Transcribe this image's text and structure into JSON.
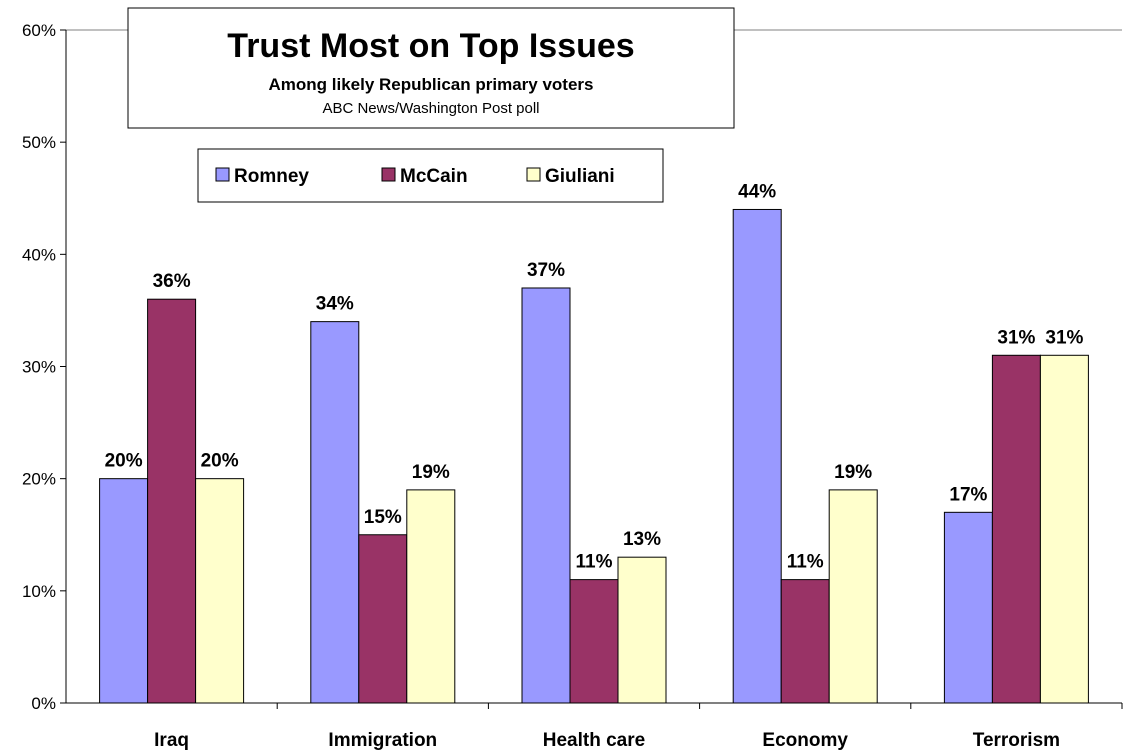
{
  "chart_data": {
    "type": "bar",
    "title": "Trust Most on Top Issues",
    "subtitle": "Among likely Republican primary voters",
    "source": "ABC News/Washington Post poll",
    "categories": [
      "Iraq",
      "Immigration",
      "Health care",
      "Economy",
      "Terrorism"
    ],
    "series": [
      {
        "name": "Romney",
        "color": "#9999ff",
        "values": [
          20,
          34,
          37,
          44,
          17
        ],
        "labels": [
          "20%",
          "34%",
          "37%",
          "44%",
          "17%"
        ]
      },
      {
        "name": "McCain",
        "color": "#993366",
        "values": [
          36,
          15,
          11,
          11,
          31
        ],
        "labels": [
          "36%",
          "15%",
          "11%",
          "11%",
          "31%"
        ]
      },
      {
        "name": "Giuliani",
        "color": "#ffffcc",
        "values": [
          20,
          19,
          13,
          19,
          31
        ],
        "labels": [
          "20%",
          "19%",
          "13%",
          "19%",
          "31%"
        ]
      }
    ],
    "ylim": [
      0,
      60
    ],
    "yticks": [
      0,
      10,
      20,
      30,
      40,
      50,
      60
    ],
    "ytick_labels": [
      "0%",
      "10%",
      "20%",
      "30%",
      "40%",
      "50%",
      "60%"
    ],
    "legend_position": "top-left",
    "grid": false
  }
}
